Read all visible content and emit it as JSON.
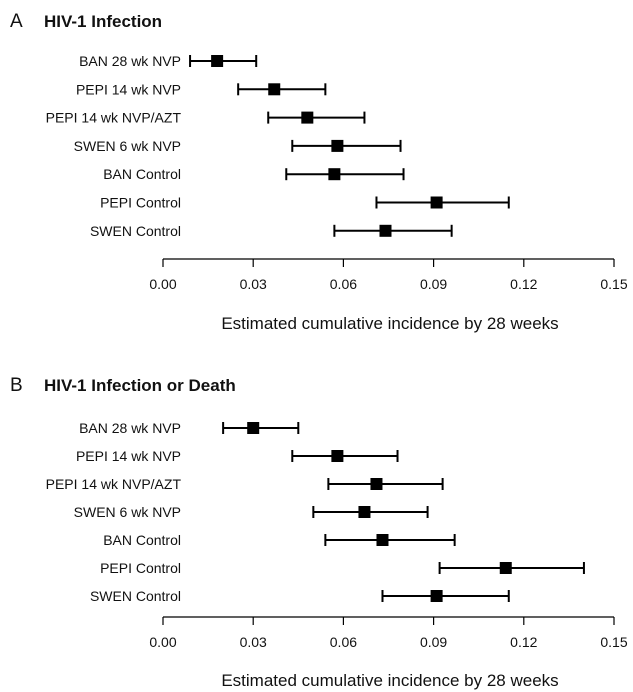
{
  "chart_data": [
    {
      "type": "forest",
      "panel": "A",
      "title": "HIV-1 Infection",
      "xlabel": "Estimated cumulative incidence by 28 weeks",
      "xlim": [
        0,
        0.15
      ],
      "xticks": [
        0.0,
        0.03,
        0.06,
        0.09,
        0.12,
        0.15
      ],
      "xtick_labels": [
        "0.00",
        "0.03",
        "0.06",
        "0.09",
        "0.12",
        "0.15"
      ],
      "grid": false,
      "rows": [
        {
          "label": "BAN 28 wk NVP",
          "estimate": 0.018,
          "lower": 0.009,
          "upper": 0.031
        },
        {
          "label": "PEPI 14 wk NVP",
          "estimate": 0.037,
          "lower": 0.025,
          "upper": 0.054
        },
        {
          "label": "PEPI 14 wk NVP/AZT",
          "estimate": 0.048,
          "lower": 0.035,
          "upper": 0.067
        },
        {
          "label": "SWEN 6 wk NVP",
          "estimate": 0.058,
          "lower": 0.043,
          "upper": 0.079
        },
        {
          "label": "BAN Control",
          "estimate": 0.057,
          "lower": 0.041,
          "upper": 0.08
        },
        {
          "label": "PEPI Control",
          "estimate": 0.091,
          "lower": 0.071,
          "upper": 0.115
        },
        {
          "label": "SWEN Control",
          "estimate": 0.074,
          "lower": 0.057,
          "upper": 0.096
        }
      ]
    },
    {
      "type": "forest",
      "panel": "B",
      "title": "HIV-1 Infection or Death",
      "xlabel": "Estimated cumulative incidence by 28 weeks",
      "xlim": [
        0,
        0.15
      ],
      "xticks": [
        0.0,
        0.03,
        0.06,
        0.09,
        0.12,
        0.15
      ],
      "xtick_labels": [
        "0.00",
        "0.03",
        "0.06",
        "0.09",
        "0.12",
        "0.15"
      ],
      "grid": false,
      "rows": [
        {
          "label": "BAN 28 wk NVP",
          "estimate": 0.03,
          "lower": 0.02,
          "upper": 0.045
        },
        {
          "label": "PEPI 14 wk NVP",
          "estimate": 0.058,
          "lower": 0.043,
          "upper": 0.078
        },
        {
          "label": "PEPI 14 wk NVP/AZT",
          "estimate": 0.071,
          "lower": 0.055,
          "upper": 0.093
        },
        {
          "label": "SWEN 6 wk NVP",
          "estimate": 0.067,
          "lower": 0.05,
          "upper": 0.088
        },
        {
          "label": "BAN Control",
          "estimate": 0.073,
          "lower": 0.054,
          "upper": 0.097
        },
        {
          "label": "PEPI Control",
          "estimate": 0.114,
          "lower": 0.092,
          "upper": 0.14
        },
        {
          "label": "SWEN Control",
          "estimate": 0.091,
          "lower": 0.073,
          "upper": 0.115
        }
      ]
    }
  ]
}
